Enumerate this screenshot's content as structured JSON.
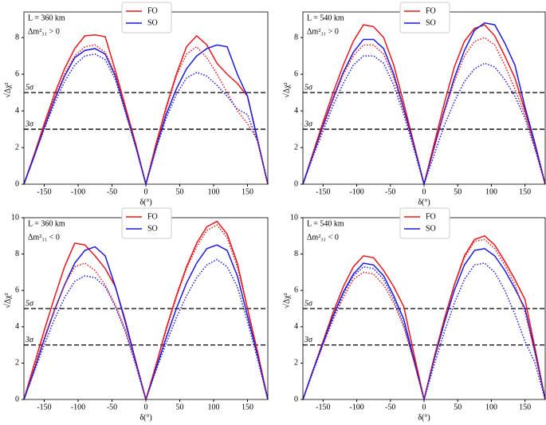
{
  "chart_data": [
    {
      "type": "line",
      "annotations": [
        "L = 360 km",
        "Δm²₃₁ > 0"
      ],
      "xlabel": "δ(°)",
      "ylabel": "√Δχ²",
      "x": [
        -180,
        -165,
        -150,
        -135,
        -120,
        -105,
        -90,
        -75,
        -60,
        -45,
        -30,
        -15,
        0,
        15,
        30,
        45,
        60,
        75,
        90,
        105,
        120,
        135,
        150,
        165,
        180
      ],
      "xlim": [
        -180,
        180
      ],
      "xticks": [
        -150,
        -100,
        -50,
        0,
        50,
        100,
        150
      ],
      "ylim": [
        0,
        9.4
      ],
      "yticks": [
        0,
        2,
        4,
        6,
        8
      ],
      "hlines": [
        {
          "value": 5,
          "label": "5σ"
        },
        {
          "value": 3,
          "label": "3σ"
        }
      ],
      "legend": "upper center",
      "series": [
        {
          "name": "FO",
          "color": "#e8161b",
          "dash": "solid",
          "values": [
            0,
            1.6,
            3.3,
            4.9,
            6.3,
            7.4,
            8.1,
            8.15,
            8.05,
            6.2,
            4.2,
            2.2,
            0,
            2.2,
            4.2,
            6.0,
            7.5,
            8.1,
            7.6,
            6.6,
            6.0,
            5.5,
            4.8,
            2.4,
            0
          ]
        },
        {
          "name": "SO",
          "color": "#1a1ae0",
          "dash": "solid",
          "values": [
            0,
            1.5,
            3.1,
            4.6,
            5.9,
            6.9,
            7.3,
            7.4,
            7.1,
            5.9,
            4.0,
            2.1,
            0,
            2.0,
            3.8,
            5.2,
            6.3,
            7.0,
            7.4,
            7.6,
            7.5,
            6.0,
            4.8,
            2.4,
            0
          ]
        },
        {
          "color": "#e8161b",
          "dash": "dotted",
          "values": [
            0,
            1.6,
            3.2,
            4.7,
            6.0,
            7.0,
            7.5,
            7.6,
            7.2,
            6.0,
            4.1,
            2.1,
            0,
            2.1,
            4.1,
            5.9,
            7.1,
            7.5,
            6.9,
            6.0,
            5.0,
            4.0,
            3.3,
            2.4,
            0
          ]
        },
        {
          "color": "#1a1ae0",
          "dash": "dotted",
          "values": [
            0,
            1.5,
            3.0,
            4.4,
            5.6,
            6.5,
            7.0,
            7.1,
            6.8,
            5.7,
            3.9,
            2.0,
            0,
            1.9,
            3.6,
            4.9,
            5.8,
            6.1,
            5.9,
            5.4,
            4.8,
            4.1,
            3.8,
            2.3,
            0
          ]
        }
      ]
    },
    {
      "type": "line",
      "annotations": [
        "L = 540 km",
        "Δm²₃₁ > 0"
      ],
      "xlabel": "δ(°)",
      "ylabel": "√Δχ²",
      "x": [
        -180,
        -165,
        -150,
        -135,
        -120,
        -105,
        -90,
        -75,
        -60,
        -45,
        -30,
        -15,
        0,
        15,
        30,
        45,
        60,
        75,
        90,
        105,
        120,
        135,
        150,
        165,
        180
      ],
      "xlim": [
        -180,
        180
      ],
      "xticks": [
        -150,
        -100,
        -50,
        0,
        50,
        100,
        150
      ],
      "ylim": [
        0,
        9.4
      ],
      "yticks": [
        0,
        2,
        4,
        6,
        8
      ],
      "hlines": [
        {
          "value": 5,
          "label": "5σ"
        },
        {
          "value": 3,
          "label": "3σ"
        }
      ],
      "legend": "upper center",
      "series": [
        {
          "name": "FO",
          "color": "#e8161b",
          "dash": "solid",
          "values": [
            0,
            1.7,
            3.4,
            5.0,
            6.5,
            7.8,
            8.7,
            8.6,
            8.0,
            6.5,
            4.4,
            2.2,
            0,
            2.2,
            4.4,
            6.4,
            7.8,
            8.5,
            8.7,
            8.1,
            7.0,
            5.8,
            4.0,
            2.1,
            0
          ]
        },
        {
          "name": "SO",
          "color": "#1a1ae0",
          "dash": "solid",
          "values": [
            0,
            1.6,
            3.2,
            4.7,
            6.1,
            7.2,
            7.9,
            7.9,
            7.4,
            6.0,
            4.1,
            2.1,
            0,
            2.0,
            4.0,
            5.8,
            7.3,
            8.4,
            8.8,
            8.7,
            7.7,
            6.5,
            4.2,
            2.2,
            0
          ]
        },
        {
          "color": "#e8161b",
          "dash": "dotted",
          "values": [
            0,
            1.6,
            3.1,
            4.6,
            6.0,
            7.0,
            7.6,
            7.6,
            7.1,
            5.8,
            4.0,
            2.0,
            0,
            2.0,
            3.9,
            5.6,
            7.0,
            7.8,
            8.0,
            7.6,
            6.5,
            5.2,
            3.8,
            2.0,
            0
          ]
        },
        {
          "color": "#1a1ae0",
          "dash": "dotted",
          "values": [
            0,
            1.5,
            2.9,
            4.3,
            5.5,
            6.5,
            7.0,
            7.0,
            6.6,
            5.4,
            3.8,
            1.9,
            0,
            1.6,
            3.2,
            4.5,
            5.6,
            6.3,
            6.6,
            6.4,
            5.7,
            4.8,
            3.6,
            1.9,
            0
          ]
        }
      ]
    },
    {
      "type": "line",
      "annotations": [
        "L = 360 km",
        "Δm²₃₁ < 0"
      ],
      "xlabel": "δ(°)",
      "ylabel": "√Δχ²",
      "x": [
        -180,
        -165,
        -150,
        -135,
        -120,
        -105,
        -90,
        -75,
        -60,
        -45,
        -30,
        -15,
        0,
        15,
        30,
        45,
        60,
        75,
        90,
        105,
        120,
        135,
        150,
        165,
        180
      ],
      "xlim": [
        -180,
        180
      ],
      "xticks": [
        -150,
        -100,
        -50,
        0,
        50,
        100,
        150
      ],
      "ylim": [
        0,
        10
      ],
      "yticks": [
        0,
        2,
        4,
        6,
        8,
        10
      ],
      "hlines": [
        {
          "value": 5,
          "label": "5σ"
        },
        {
          "value": 3,
          "label": "3σ"
        }
      ],
      "legend": "upper center",
      "series": [
        {
          "name": "FO",
          "color": "#e8161b",
          "dash": "solid",
          "values": [
            0,
            1.9,
            3.8,
            5.6,
            7.3,
            8.6,
            8.5,
            7.9,
            7.2,
            6.2,
            4.3,
            2.1,
            0,
            1.9,
            3.9,
            5.7,
            7.3,
            8.6,
            9.5,
            9.8,
            9.1,
            7.5,
            5.0,
            2.6,
            0
          ]
        },
        {
          "name": "SO",
          "color": "#1a1ae0",
          "dash": "solid",
          "values": [
            0,
            1.6,
            3.3,
            4.9,
            6.3,
            7.5,
            8.2,
            8.4,
            7.9,
            6.2,
            4.2,
            2.1,
            0,
            1.7,
            3.4,
            5.0,
            6.4,
            7.5,
            8.3,
            8.5,
            8.2,
            6.8,
            4.6,
            2.4,
            0
          ]
        },
        {
          "color": "#e8161b",
          "dash": "dotted",
          "values": [
            0,
            1.7,
            3.4,
            4.9,
            6.3,
            7.3,
            7.5,
            7.1,
            6.3,
            5.2,
            3.8,
            2.0,
            0,
            1.9,
            3.8,
            5.6,
            7.2,
            8.4,
            9.3,
            9.6,
            8.9,
            7.3,
            5.0,
            2.6,
            0
          ]
        },
        {
          "color": "#1a1ae0",
          "dash": "dotted",
          "values": [
            0,
            1.5,
            3.0,
            4.4,
            5.6,
            6.5,
            6.8,
            6.7,
            6.2,
            5.1,
            3.7,
            1.9,
            0,
            1.6,
            3.1,
            4.5,
            5.7,
            6.7,
            7.4,
            7.7,
            7.3,
            6.2,
            4.3,
            2.2,
            0
          ]
        }
      ]
    },
    {
      "type": "line",
      "annotations": [
        "L = 540 km",
        "Δm²₃₁ < 0"
      ],
      "xlabel": "δ(°)",
      "ylabel": "√Δχ²",
      "x": [
        -180,
        -165,
        -150,
        -135,
        -120,
        -105,
        -90,
        -75,
        -60,
        -45,
        -30,
        -15,
        0,
        15,
        30,
        45,
        60,
        75,
        90,
        105,
        120,
        135,
        150,
        165,
        180
      ],
      "xlim": [
        -180,
        180
      ],
      "xticks": [
        -150,
        -100,
        -50,
        0,
        50,
        100,
        150
      ],
      "ylim": [
        0,
        10
      ],
      "yticks": [
        0,
        2,
        4,
        6,
        8,
        10
      ],
      "hlines": [
        {
          "value": 5,
          "label": "5σ"
        },
        {
          "value": 3,
          "label": "3σ"
        }
      ],
      "legend": "upper center",
      "series": [
        {
          "name": "FO",
          "color": "#e8161b",
          "dash": "solid",
          "values": [
            0,
            1.6,
            3.2,
            4.8,
            6.2,
            7.3,
            7.9,
            7.8,
            7.1,
            6.2,
            5.1,
            2.5,
            0,
            2.3,
            4.4,
            6.3,
            7.9,
            8.8,
            9.0,
            8.5,
            7.6,
            6.6,
            5.5,
            2.8,
            0
          ]
        },
        {
          "name": "SO",
          "color": "#1a1ae0",
          "dash": "solid",
          "values": [
            0,
            1.6,
            3.1,
            4.6,
            5.9,
            6.9,
            7.5,
            7.4,
            6.8,
            5.7,
            4.4,
            2.2,
            0,
            2.2,
            4.2,
            6.0,
            7.4,
            8.2,
            8.3,
            7.9,
            7.1,
            6.1,
            5.0,
            2.6,
            0
          ]
        },
        {
          "color": "#e8161b",
          "dash": "dotted",
          "values": [
            0,
            1.5,
            3.0,
            4.4,
            5.6,
            6.6,
            7.0,
            6.9,
            6.3,
            5.3,
            4.0,
            2.1,
            0,
            2.3,
            4.4,
            6.3,
            7.8,
            8.7,
            8.8,
            8.3,
            7.4,
            6.3,
            4.8,
            2.5,
            0
          ]
        },
        {
          "color": "#1a1ae0",
          "dash": "dotted",
          "values": [
            0,
            1.6,
            3.1,
            4.5,
            5.8,
            6.8,
            7.3,
            7.2,
            6.6,
            5.5,
            4.1,
            2.1,
            0,
            1.9,
            3.7,
            5.3,
            6.6,
            7.4,
            7.5,
            7.0,
            6.0,
            4.7,
            3.2,
            2.0,
            0
          ]
        }
      ]
    }
  ]
}
